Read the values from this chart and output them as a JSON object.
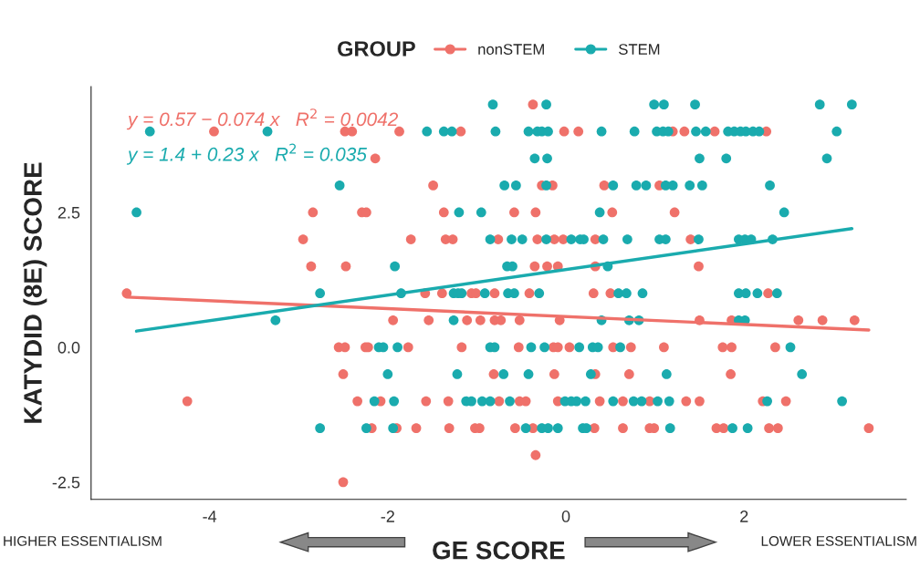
{
  "chart_data": {
    "type": "scatter",
    "xlabel": "GE SCORE",
    "ylabel": "KATYDID (8E) SCORE",
    "legend_title": "GROUP",
    "annotations": [
      "y = 0.57 − 0.074 x   R$^{2}$ = 0.0042",
      "y = 1.4 + 0.23 x   R$^{2}$ = 0.035",
      "HIGHER ESSENTIALISM",
      "LOWER ESSENTIALISM"
    ],
    "xlim": [
      -5.33,
      3.82
    ],
    "ylim": [
      -2.82,
      4.83
    ],
    "xticks": [
      -4,
      -2,
      0,
      2
    ],
    "yticks": [
      {
        "value": -2.5,
        "label": "-2.5"
      },
      {
        "value": 0,
        "label": "0.0"
      },
      {
        "value": 2.5,
        "label": "2.5"
      }
    ],
    "grid": false,
    "legend": "top",
    "series": [
      {
        "name": "nonSTEM",
        "color": "#ef716a",
        "marker": "circle",
        "x": [
          -0.37,
          -3.95,
          -2.48,
          -2.4,
          -1.87,
          -1.18,
          -0.02,
          0.14,
          1.2,
          1.33,
          1.67,
          2.25,
          -2.14,
          -1.49,
          -0.27,
          -0.15,
          0.43,
          1.05,
          -2.84,
          -2.29,
          -2.24,
          -1.37,
          -0.58,
          -0.34,
          0.52,
          1.22,
          -2.95,
          -1.74,
          -1.35,
          -1.27,
          -0.76,
          -0.32,
          -0.13,
          -0.03,
          0.33,
          1.4,
          -2.86,
          -2.47,
          -0.35,
          -0.21,
          -0.09,
          0.33,
          1.49,
          -4.93,
          -1.58,
          -1.39,
          -1.06,
          -1.01,
          -0.8,
          -0.41,
          0.31,
          0.5,
          2.27,
          -1.94,
          -1.54,
          -1.11,
          -0.96,
          -0.8,
          -0.73,
          -0.52,
          -0.07,
          1.5,
          1.86,
          2.61,
          2.88,
          3.24,
          -2.55,
          -2.48,
          -2.25,
          -2.22,
          -1.77,
          -1.17,
          -0.53,
          -0.14,
          -0.09,
          0.04,
          0.53,
          0.73,
          1.1,
          1.76,
          1.86,
          2.35,
          -2.5,
          -0.81,
          -0.13,
          0.33,
          0.71,
          1.85,
          -4.25,
          -2.34,
          -2.08,
          -1.57,
          -1.32,
          -0.75,
          -0.52,
          -0.45,
          -0.09,
          0.38,
          0.64,
          0.94,
          1.35,
          1.5,
          2.21,
          2.47,
          -2.18,
          -1.9,
          -1.68,
          -1.31,
          -1.02,
          -0.97,
          -0.57,
          -0.37,
          0.32,
          0.64,
          0.94,
          0.99,
          1.69,
          1.77,
          2.28,
          2.38,
          3.4,
          -0.34,
          -2.5
        ],
        "values": [
          4.5,
          4,
          4,
          4,
          4,
          4,
          4,
          4,
          4,
          4,
          4,
          4,
          3.5,
          3,
          3,
          3,
          3,
          3,
          2.5,
          2.5,
          2.5,
          2.5,
          2.5,
          2.5,
          2.5,
          2.5,
          2,
          2,
          2,
          2,
          2,
          2,
          2,
          2,
          2,
          2,
          1.5,
          1.5,
          1.5,
          1.5,
          1.5,
          1.5,
          1.5,
          1,
          1,
          1,
          1,
          1,
          1,
          1,
          1,
          1,
          1,
          0.5,
          0.5,
          0.5,
          0.5,
          0.5,
          0.5,
          0.5,
          0.5,
          0.5,
          0.5,
          0.5,
          0.5,
          0.5,
          0,
          0,
          0,
          0,
          0,
          0,
          0,
          0,
          0,
          0,
          0,
          0,
          0,
          0,
          0,
          0,
          -0.5,
          -0.5,
          -0.5,
          -0.5,
          -0.5,
          -0.5,
          -1,
          -1,
          -1,
          -1,
          -1,
          -1,
          -1,
          -1,
          -1,
          -1,
          -1,
          -1,
          -1,
          -1,
          -1,
          -1,
          -1.5,
          -1.5,
          -1.5,
          -1.5,
          -1.5,
          -1.5,
          -1.5,
          -1.5,
          -1.5,
          -1.5,
          -1.5,
          -1.5,
          -1.5,
          -1.5,
          -1.5,
          -1.5,
          -1.5,
          -2,
          -2.5
        ]
      },
      {
        "name": "STEM",
        "color": "#1aabae",
        "marker": "circle",
        "x": [
          -0.82,
          -0.22,
          0.99,
          1.1,
          1.45,
          2.85,
          3.21,
          -4.67,
          -3.35,
          -1.56,
          -1.37,
          -1.28,
          -0.79,
          -0.42,
          -0.32,
          -0.27,
          -0.2,
          0.4,
          0.77,
          1.02,
          1.09,
          1.15,
          1.46,
          1.57,
          1.82,
          1.89,
          1.96,
          2.02,
          2.1,
          2.17,
          3.04,
          -0.35,
          -0.21,
          1.5,
          1.8,
          2.93,
          -2.54,
          -0.69,
          -0.56,
          -0.22,
          0.53,
          0.79,
          0.9,
          1.12,
          1.2,
          1.39,
          1.53,
          2.29,
          -4.82,
          -1.2,
          -0.95,
          0.38,
          2.45,
          -0.85,
          -0.61,
          -0.49,
          -0.22,
          0.06,
          0.16,
          0.2,
          0.42,
          0.69,
          1.05,
          1.12,
          1.49,
          1.94,
          2.01,
          2.08,
          2.32,
          -1.92,
          -0.66,
          -0.6,
          0.47,
          -2.76,
          -1.85,
          -1.26,
          -1.21,
          -1.17,
          -0.91,
          -0.65,
          -0.58,
          -0.3,
          0.59,
          0.68,
          0.86,
          1.94,
          2.02,
          2.15,
          2.37,
          -3.26,
          -1.26,
          0.4,
          0.71,
          0.82,
          1.94,
          2.01,
          -2.1,
          -2.05,
          -1.89,
          -0.85,
          -0.8,
          -0.39,
          -0.24,
          0.15,
          0.3,
          0.36,
          0.61,
          2.52,
          -2.0,
          -1.22,
          -0.7,
          -0.42,
          0.28,
          1.13,
          2.65,
          -2.15,
          -1.93,
          -1.12,
          -1.06,
          -0.94,
          -0.85,
          -0.63,
          -0.01,
          0.06,
          0.12,
          0.22,
          0.53,
          0.76,
          0.85,
          1.03,
          1.16,
          2.26,
          3.1,
          -2.76,
          -2.24,
          -1.94,
          -0.45,
          -0.27,
          -0.2,
          -0.09,
          0.19,
          0.23,
          1.17,
          1.87,
          2.04
        ],
        "values": [
          4.5,
          4.5,
          4.5,
          4.5,
          4.5,
          4.5,
          4.5,
          4,
          4,
          4,
          4,
          4,
          4,
          4,
          4,
          4,
          4,
          4,
          4,
          4,
          4,
          4,
          4,
          4,
          4,
          4,
          4,
          4,
          4,
          4,
          4,
          3.5,
          3.5,
          3.5,
          3.5,
          3.5,
          3,
          3,
          3,
          3,
          3,
          3,
          3,
          3,
          3,
          3,
          3,
          3,
          2.5,
          2.5,
          2.5,
          2.5,
          2.5,
          2,
          2,
          2,
          2,
          2,
          2,
          2,
          2,
          2,
          2,
          2,
          2,
          2,
          2,
          2,
          2,
          1.5,
          1.5,
          1.5,
          1.5,
          1,
          1,
          1,
          1,
          1,
          1,
          1,
          1,
          1,
          1,
          1,
          1,
          1,
          1,
          1,
          1,
          0.5,
          0.5,
          0.5,
          0.5,
          0.5,
          0.5,
          0.5,
          0,
          0,
          0,
          0,
          0,
          0,
          0,
          0,
          0,
          0,
          0,
          0,
          -0.5,
          -0.5,
          -0.5,
          -0.5,
          -0.5,
          -0.5,
          -0.5,
          -1,
          -1,
          -1,
          -1,
          -1,
          -1,
          -1,
          -1,
          -1,
          -1,
          -1,
          -1,
          -1,
          -1,
          -1,
          -1,
          -1,
          -1,
          -1.5,
          -1.5,
          -1.5,
          -1.5,
          -1.5,
          -1.5,
          -1.5,
          -1.5,
          -1.5,
          -1.5,
          -1.5,
          -1.5
        ]
      },
      {
        "type": "line",
        "color": "#ef716a",
        "x": [
          -4.93,
          3.4
        ],
        "values": [
          0.93,
          0.32
        ]
      },
      {
        "type": "line",
        "color": "#1aabae",
        "x": [
          -4.82,
          3.21
        ],
        "values": [
          0.3,
          2.2
        ]
      }
    ]
  }
}
